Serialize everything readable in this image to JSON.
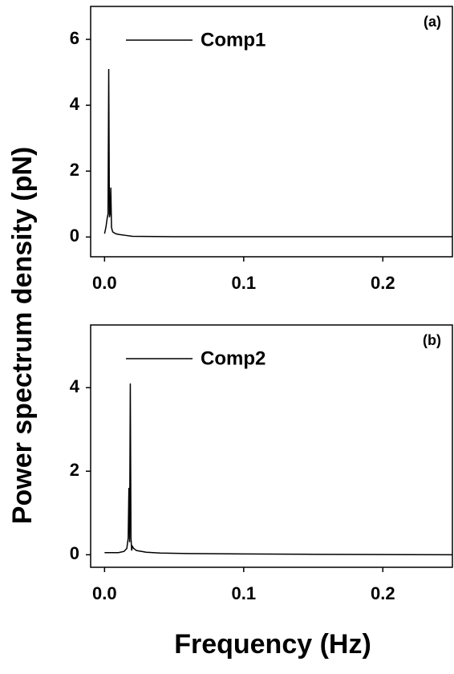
{
  "chart_data": [
    {
      "type": "line",
      "panel_label": "(a)",
      "ylabel": "Power spectrum density (pN)",
      "x": [
        0,
        0.001,
        0.002,
        0.0025,
        0.003,
        0.0035,
        0.004,
        0.0045,
        0.005,
        0.0055,
        0.006,
        0.008,
        0.01,
        0.015,
        0.02,
        0.05,
        0.1,
        0.15,
        0.2,
        0.25
      ],
      "series": [
        {
          "name": "Comp1",
          "color": "#000000",
          "values": [
            0.1,
            0.3,
            0.6,
            0.7,
            5.1,
            0.6,
            0.7,
            1.5,
            0.3,
            0.2,
            0.15,
            0.1,
            0.08,
            0.05,
            0.02,
            0.01,
            0.01,
            0.01,
            0.01,
            0.01
          ]
        }
      ],
      "xlim": [
        -0.01,
        0.25
      ],
      "ylim": [
        -0.6,
        7
      ],
      "xticks": [
        {
          "value": 0,
          "label": "0.0"
        },
        0.1,
        0.2
      ],
      "yticks": [
        0,
        2,
        4,
        6
      ],
      "grid": false
    },
    {
      "type": "line",
      "panel_label": "(b)",
      "xlabel": "Frequency (Hz)",
      "x": [
        0,
        0.01,
        0.014,
        0.016,
        0.017,
        0.0175,
        0.018,
        0.0185,
        0.019,
        0.0195,
        0.02,
        0.021,
        0.023,
        0.03,
        0.04,
        0.06,
        0.1,
        0.15,
        0.2,
        0.25
      ],
      "series": [
        {
          "name": "Comp2",
          "color": "#000000",
          "values": [
            0.05,
            0.05,
            0.08,
            0.15,
            0.4,
            1.6,
            0.3,
            4.1,
            0.4,
            0.1,
            0.2,
            0.15,
            0.1,
            0.06,
            0.04,
            0.03,
            0.02,
            0.01,
            0.005,
            0
          ]
        }
      ],
      "xlim": [
        -0.01,
        0.25
      ],
      "ylim": [
        -0.3,
        5.5
      ],
      "xticks": [
        {
          "value": 0,
          "label": "0.0"
        },
        0.1,
        0.2
      ],
      "yticks": [
        0,
        2,
        4
      ],
      "grid": false
    }
  ]
}
